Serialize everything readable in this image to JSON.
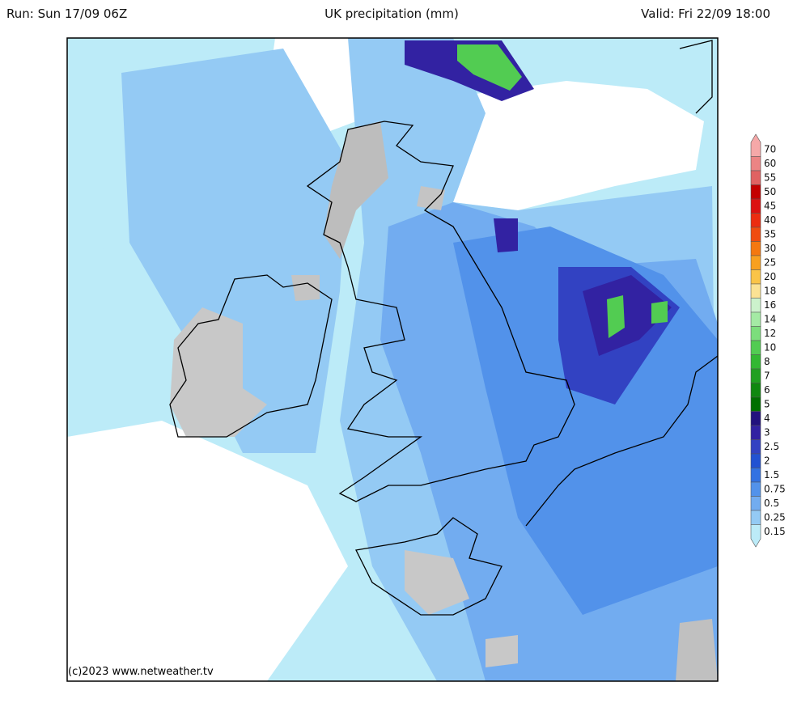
{
  "header": {
    "run": "Run: Sun 17/09 06Z",
    "title": "UK precipitation (mm)",
    "valid": "Valid: Fri 22/09 18:00"
  },
  "legend": {
    "levels": [
      {
        "label": "70",
        "color": "#f5a8a8"
      },
      {
        "label": "60",
        "color": "#ec8484"
      },
      {
        "label": "55",
        "color": "#e06262"
      },
      {
        "label": "50",
        "color": "#c40000"
      },
      {
        "label": "45",
        "color": "#dc1010"
      },
      {
        "label": "40",
        "color": "#ec2c10"
      },
      {
        "label": "35",
        "color": "#f04c10"
      },
      {
        "label": "30",
        "color": "#f47810"
      },
      {
        "label": "25",
        "color": "#f8a020"
      },
      {
        "label": "20",
        "color": "#fac448"
      },
      {
        "label": "18",
        "color": "#fbe294"
      },
      {
        "label": "16",
        "color": "#ccf2cc"
      },
      {
        "label": "14",
        "color": "#a4eaa4"
      },
      {
        "label": "12",
        "color": "#7cde7c"
      },
      {
        "label": "10",
        "color": "#52cc52"
      },
      {
        "label": "8",
        "color": "#32b832"
      },
      {
        "label": "7",
        "color": "#20a020"
      },
      {
        "label": "6",
        "color": "#108810"
      },
      {
        "label": "5",
        "color": "#007000"
      },
      {
        "label": "4",
        "color": "#22127e"
      },
      {
        "label": "3",
        "color": "#3222a2"
      },
      {
        "label": "2.5",
        "color": "#3242c2"
      },
      {
        "label": "2",
        "color": "#2252d2"
      },
      {
        "label": "1.5",
        "color": "#3272e2"
      },
      {
        "label": "0.75",
        "color": "#5292ea"
      },
      {
        "label": "0.5",
        "color": "#72acf0"
      },
      {
        "label": "0.25",
        "color": "#94caf4"
      },
      {
        "label": "0.15",
        "color": "#bcebf8"
      }
    ]
  },
  "credit": "(c)2023 www.netweather.tv"
}
